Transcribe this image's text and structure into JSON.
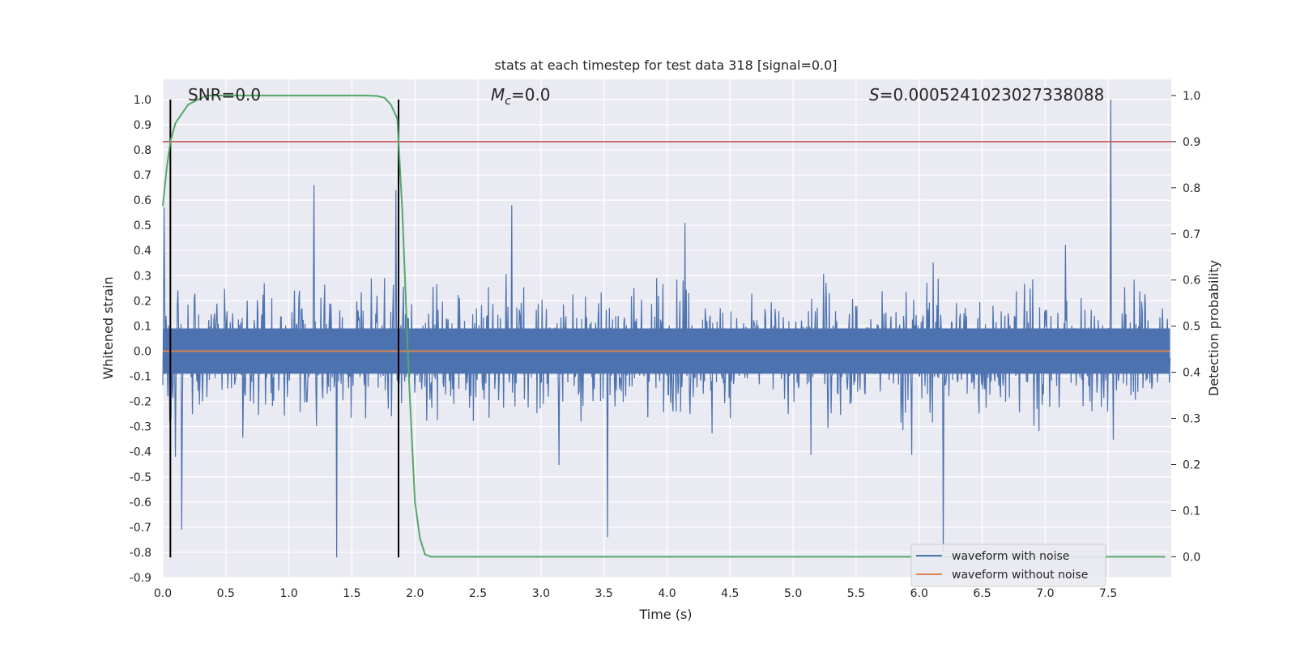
{
  "chart_data": {
    "type": "line",
    "title": "stats at each timestep for test data 318 [signal=0.0]",
    "xlabel": "Time (s)",
    "ylabel": "Whitened strain",
    "ylabel_right": "Detection probability",
    "xlim": [
      0.0,
      8.0
    ],
    "ylim": [
      -0.9,
      1.08
    ],
    "ylim_right": [
      -0.045,
      1.035
    ],
    "xticks": [
      "0.0",
      "0.5",
      "1.0",
      "1.5",
      "2.0",
      "2.5",
      "3.0",
      "3.5",
      "4.0",
      "4.5",
      "5.0",
      "5.5",
      "6.0",
      "6.5",
      "7.0",
      "7.5"
    ],
    "yticks": [
      "1.0",
      "0.9",
      "0.8",
      "0.7",
      "0.6",
      "0.5",
      "0.4",
      "0.3",
      "0.2",
      "0.1",
      "0.0",
      "-0.1",
      "-0.2",
      "-0.3",
      "-0.4",
      "-0.5",
      "-0.6",
      "-0.7",
      "-0.8",
      "-0.9"
    ],
    "yticks_right": [
      "1.0",
      "0.9",
      "0.8",
      "0.7",
      "0.6",
      "0.5",
      "0.4",
      "0.3",
      "0.2",
      "0.1",
      "0.0"
    ],
    "grid": true,
    "legend_position": "bottom-right",
    "annotations": {
      "snr_prefix": "SNR=",
      "snr_value": "0.0",
      "mc_value": "=0.0",
      "s_value": "=0.0005241023027338088"
    },
    "series": [
      {
        "name": "waveform with noise",
        "color": "#4c72b0",
        "description_points": "dense noise trace, envelope roughly ±0.35, peaks about 0.65 and -0.82; spike to 1.0 at t≈7.53",
        "spikes": [
          {
            "x": 0.01,
            "y": 0.57
          },
          {
            "x": 0.1,
            "y": -0.42
          },
          {
            "x": 0.15,
            "y": -0.71
          },
          {
            "x": 1.2,
            "y": 0.66
          },
          {
            "x": 1.38,
            "y": -0.82
          },
          {
            "x": 1.85,
            "y": 0.64
          },
          {
            "x": 3.53,
            "y": -0.74
          },
          {
            "x": 6.2,
            "y": -0.8
          },
          {
            "x": 7.53,
            "y": 1.0
          }
        ]
      },
      {
        "name": "waveform without noise",
        "color": "#dd8452",
        "x": [
          0.0,
          8.0
        ],
        "y": [
          0.0,
          0.0
        ]
      },
      {
        "name": "detection probability",
        "color": "#55a868",
        "axis": "right",
        "x": [
          0.0,
          0.03,
          0.06,
          0.1,
          0.15,
          0.2,
          0.27,
          0.35,
          0.5,
          1.0,
          1.5,
          1.6,
          1.7,
          1.76,
          1.81,
          1.86,
          1.9,
          1.95,
          2.0,
          2.04,
          2.08,
          2.13,
          2.2,
          3.0,
          5.0,
          7.0,
          7.95
        ],
        "y": [
          0.76,
          0.84,
          0.9,
          0.94,
          0.96,
          0.98,
          0.99,
          1.0,
          1.0,
          1.0,
          1.0,
          1.0,
          0.999,
          0.995,
          0.98,
          0.95,
          0.75,
          0.4,
          0.12,
          0.04,
          0.005,
          0.0,
          0.0,
          0.0,
          0.0,
          0.0,
          0.0
        ]
      }
    ],
    "threshold_line": {
      "y_right": 0.9,
      "color": "#c44e52"
    },
    "vertical_markers": {
      "x": [
        0.06,
        1.87
      ],
      "color": "#000000"
    }
  }
}
